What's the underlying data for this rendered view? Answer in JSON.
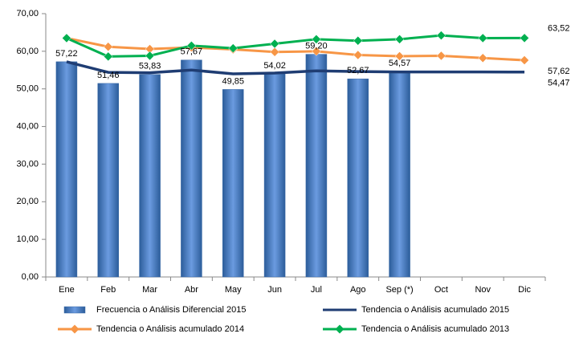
{
  "chart_data": {
    "type": "bar",
    "categories": [
      "Ene",
      "Feb",
      "Mar",
      "Abr",
      "May",
      "Jun",
      "Jul",
      "Ago",
      "Sep (*)",
      "Oct",
      "Nov",
      "Dic"
    ],
    "ylim": [
      0,
      70
    ],
    "yticks": [
      {
        "value": 0,
        "label": "0,00"
      },
      {
        "value": 10,
        "label": "10,00"
      },
      {
        "value": 20,
        "label": "20,00"
      },
      {
        "value": 30,
        "label": "30,00"
      },
      {
        "value": 40,
        "label": "40,00"
      },
      {
        "value": 50,
        "label": "50,00"
      },
      {
        "value": 60,
        "label": "60,00"
      },
      {
        "value": 70,
        "label": "70,00"
      }
    ],
    "grid": false,
    "series": [
      {
        "name": "Frecuencia o Análisis Diferencial 2015",
        "type": "bar",
        "color": "#4a7ebb",
        "values": [
          57.22,
          51.46,
          53.83,
          57.67,
          49.85,
          54.02,
          59.2,
          52.67,
          54.57,
          null,
          null,
          null
        ],
        "value_labels": [
          "57,22",
          "51,46",
          "53,83",
          "57,67",
          "49,85",
          "54,02",
          "59,20",
          "52,67",
          "54,57",
          null,
          null,
          null
        ]
      },
      {
        "name": "Tendencia o Análisis acumulado 2015",
        "type": "line",
        "color": "#1f3d73",
        "marker": "none",
        "values": [
          57.22,
          54.4,
          54.3,
          55.0,
          54.0,
          54.2,
          54.8,
          54.6,
          54.5,
          54.5,
          54.5,
          54.47
        ],
        "value_labels": [
          null,
          null,
          null,
          null,
          null,
          null,
          null,
          null,
          null,
          null,
          null,
          "54,47"
        ]
      },
      {
        "name": "Tendencia o Análisis acumulado 2014",
        "type": "line",
        "color": "#f79646",
        "marker": "diamond",
        "values": [
          63.5,
          61.2,
          60.6,
          61.0,
          60.5,
          59.8,
          60.0,
          59.0,
          58.7,
          58.8,
          58.2,
          57.62
        ],
        "value_labels": [
          null,
          null,
          null,
          null,
          null,
          null,
          null,
          null,
          null,
          null,
          null,
          "57,62"
        ]
      },
      {
        "name": "Tendencia o Análisis acumulado 2013",
        "type": "line",
        "color": "#00b050",
        "marker": "diamond",
        "values": [
          63.5,
          58.6,
          58.8,
          61.5,
          60.8,
          62.0,
          63.2,
          62.8,
          63.2,
          64.2,
          63.5,
          63.52
        ],
        "value_labels": [
          null,
          null,
          null,
          null,
          null,
          null,
          null,
          null,
          null,
          null,
          null,
          "63,52"
        ]
      }
    ]
  }
}
